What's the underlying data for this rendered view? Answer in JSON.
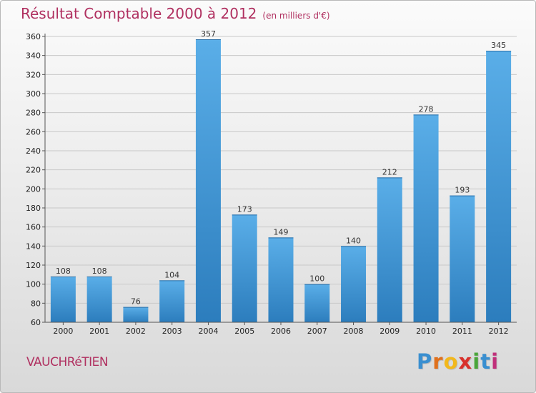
{
  "header": {
    "title": "Résultat Comptable 2000 à 2012",
    "unit": "(en milliers d'€)"
  },
  "footer": {
    "place": "VAUCHRéTIEN",
    "logo_letters": [
      "P",
      "r",
      "o",
      "x",
      "i",
      "t",
      "i"
    ]
  },
  "colors": {
    "title": "#b03060",
    "bar_light": "#5aaee8",
    "bar_dark": "#2c7dbd",
    "logo": [
      "#3a8fd0",
      "#e0701c",
      "#f2b81c",
      "#d8312c",
      "#4aa53a",
      "#3a8fd0",
      "#c0307a"
    ]
  },
  "chart_data": {
    "type": "bar",
    "title": "Résultat Comptable 2000 à 2012",
    "ylabel": "(en milliers d'€)",
    "xlabel": "",
    "categories": [
      "2000",
      "2001",
      "2002",
      "2003",
      "2004",
      "2005",
      "2006",
      "2007",
      "2008",
      "2009",
      "2010",
      "2011",
      "2012"
    ],
    "values": [
      108,
      108,
      76,
      104,
      357,
      173,
      149,
      100,
      140,
      212,
      278,
      193,
      345
    ],
    "ylim": [
      60,
      360
    ],
    "yticks": [
      60,
      80,
      100,
      120,
      140,
      160,
      180,
      200,
      220,
      240,
      260,
      280,
      300,
      320,
      340,
      360
    ],
    "grid": true,
    "data_labels": true
  }
}
